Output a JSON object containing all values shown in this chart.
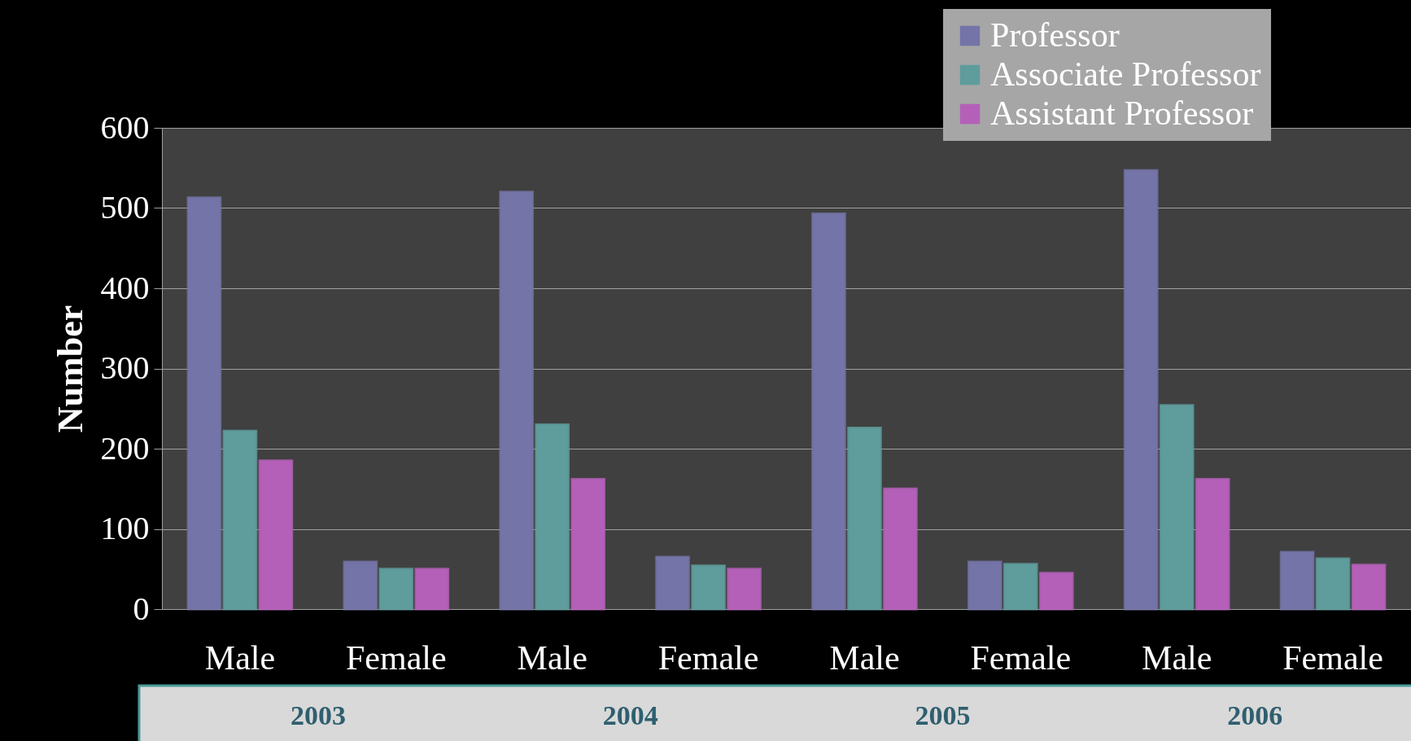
{
  "chart_data": {
    "type": "bar",
    "ylabel": "Number",
    "categories": [
      "Male",
      "Female",
      "Male",
      "Female",
      "Male",
      "Female",
      "Male",
      "Female"
    ],
    "series": [
      {
        "name": "Professor",
        "color": "#7474a8",
        "values": [
          513,
          59,
          520,
          65,
          493,
          59,
          547,
          71
        ]
      },
      {
        "name": "Associate Professor",
        "color": "#5f9c9c",
        "values": [
          222,
          50,
          230,
          54,
          226,
          56,
          254,
          63
        ]
      },
      {
        "name": "Assistant Professor",
        "color": "#b460b8",
        "values": [
          185,
          50,
          162,
          50,
          150,
          45,
          162,
          55
        ]
      }
    ],
    "ylim": [
      0,
      600
    ],
    "yticks": [
      0,
      100,
      200,
      300,
      400,
      500,
      600
    ],
    "annotations": [
      "2003",
      "2004",
      "2005",
      "2006"
    ],
    "grid": "y",
    "legend": "top right"
  }
}
